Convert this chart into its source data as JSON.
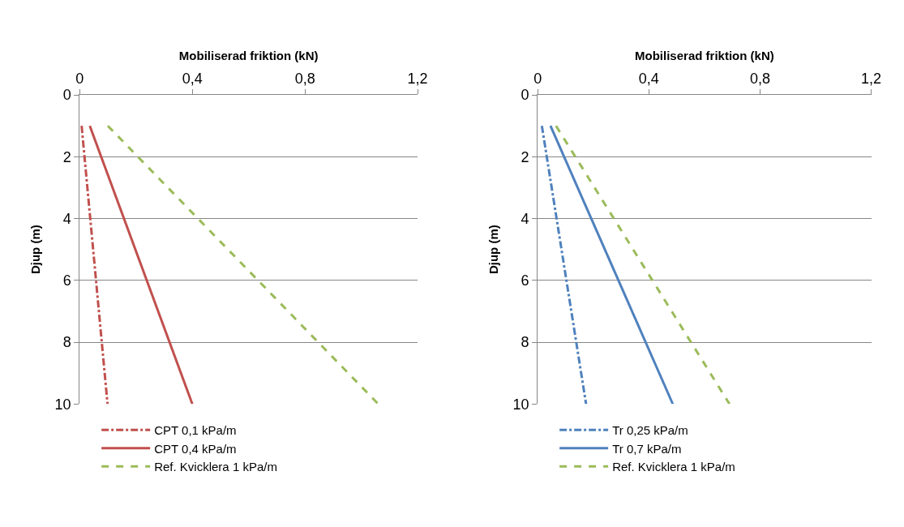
{
  "chart_data": [
    {
      "type": "line",
      "xlabel": "Mobiliserad friktion (kN)",
      "ylabel": "Djup (m)",
      "xlim": [
        0,
        1.2
      ],
      "xticks": [
        {
          "value": 0,
          "label": "0"
        },
        {
          "value": 0.4,
          "label": "0,4"
        },
        {
          "value": 0.8,
          "label": "0,8"
        },
        {
          "value": 1.2,
          "label": "1,2"
        }
      ],
      "ylim": [
        10,
        0
      ],
      "yticks": [
        0,
        2,
        4,
        6,
        8,
        10
      ],
      "grid": "y",
      "legend": "bottom",
      "series": [
        {
          "name": "CPT 0,1 kPa/m",
          "color": "#c0504d",
          "line_style": "dashdot",
          "x": [
            0.007,
            0.099
          ],
          "values": [
            1,
            10
          ]
        },
        {
          "name": "CPT 0,4 kPa/m",
          "color": "#c0504d",
          "line_style": "solid",
          "x": [
            0.036,
            0.4
          ],
          "values": [
            1,
            10
          ]
        },
        {
          "name": "Ref. Kvicklera 1 kPa/m",
          "color": "#9bbb59",
          "line_style": "dashed",
          "x": [
            0.1,
            1.06
          ],
          "values": [
            1,
            10
          ]
        }
      ]
    },
    {
      "type": "line",
      "xlabel": "Mobiliserad friktion (kN)",
      "ylabel": "Djup (m)",
      "xlim": [
        0,
        1.2
      ],
      "xticks": [
        {
          "value": 0,
          "label": "0"
        },
        {
          "value": 0.4,
          "label": "0,4"
        },
        {
          "value": 0.8,
          "label": "0,8"
        },
        {
          "value": 1.2,
          "label": "1,2"
        }
      ],
      "ylim": [
        10,
        0
      ],
      "yticks": [
        0,
        2,
        4,
        6,
        8,
        10
      ],
      "grid": "y",
      "legend": "bottom",
      "series": [
        {
          "name": "Tr 0,25 kPa/m",
          "color": "#4f81bd",
          "line_style": "dashdot",
          "x": [
            0.015,
            0.174
          ],
          "values": [
            1,
            10
          ]
        },
        {
          "name": "Tr 0,7 kPa/m",
          "color": "#4f81bd",
          "line_style": "solid",
          "x": [
            0.046,
            0.486
          ],
          "values": [
            1,
            10
          ]
        },
        {
          "name": "Ref. Kvicklera 1 kPa/m",
          "color": "#9bbb59",
          "line_style": "dashed",
          "x": [
            0.066,
            0.69
          ],
          "values": [
            1,
            10
          ]
        }
      ]
    }
  ]
}
